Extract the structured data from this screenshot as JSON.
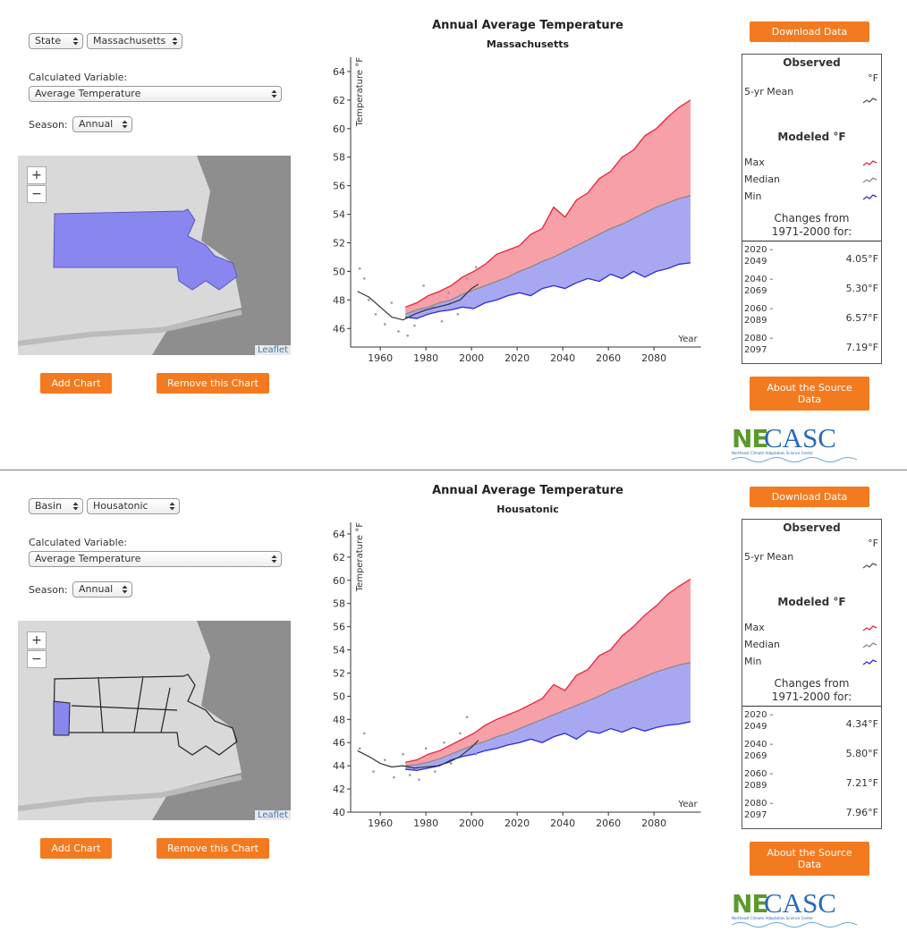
{
  "panels": [
    {
      "region_type": "State",
      "region": "Massachusetts",
      "variable_label": "Calculated Variable:",
      "variable": "Average Temperature",
      "season_label": "Season:",
      "season": "Annual",
      "zoom_in": "+",
      "zoom_out": "−",
      "map_attribution": "Leaflet",
      "add_button": "Add Chart",
      "remove_button": "Remove this Chart",
      "download_button": "Download Data",
      "chart": {
        "type": "line",
        "title": "Annual Average Temperature",
        "subtitle": "Massachusetts",
        "y_label": "Temperature °F",
        "x_label": "Year",
        "xlim": [
          1947,
          2099
        ],
        "xticks": [
          1960,
          1980,
          2000,
          2020,
          2040,
          2060,
          2080
        ],
        "ylim": [
          44.7,
          65
        ],
        "yticks": [
          46,
          48,
          50,
          52,
          54,
          56,
          58,
          60,
          62,
          64
        ],
        "x": [
          1971,
          1976,
          1981,
          1986,
          1991,
          1996,
          2001,
          2006,
          2011,
          2016,
          2021,
          2026,
          2031,
          2036,
          2041,
          2046,
          2051,
          2056,
          2061,
          2066,
          2071,
          2076,
          2081,
          2086,
          2091,
          2096
        ],
        "series": [
          {
            "name": "Max",
            "color": "#e8243c",
            "values": [
              47.5,
              47.8,
              48.3,
              48.6,
              49.0,
              49.6,
              50.0,
              50.5,
              51.2,
              51.5,
              51.8,
              52.6,
              53.0,
              54.5,
              53.8,
              55.0,
              55.5,
              56.5,
              57.0,
              58.0,
              58.5,
              59.5,
              60.0,
              60.8,
              61.5,
              62.0
            ]
          },
          {
            "name": "Median",
            "color": "#8a8a8a",
            "values": [
              47.0,
              47.3,
              47.5,
              47.8,
              48.0,
              48.4,
              48.7,
              49.0,
              49.3,
              49.6,
              50.0,
              50.3,
              50.7,
              51.0,
              51.4,
              51.8,
              52.2,
              52.6,
              53.0,
              53.3,
              53.7,
              54.1,
              54.5,
              54.8,
              55.1,
              55.3
            ]
          },
          {
            "name": "Min",
            "color": "#2b2be0",
            "values": [
              46.8,
              46.7,
              47.0,
              47.2,
              47.3,
              47.5,
              47.4,
              47.8,
              48.0,
              48.3,
              48.5,
              48.3,
              48.8,
              49.0,
              48.8,
              49.2,
              49.5,
              49.3,
              49.8,
              49.5,
              50.0,
              49.6,
              50.0,
              50.2,
              50.5,
              50.6
            ]
          }
        ],
        "observed_mean": {
          "name": "5-yr Mean",
          "color": "#333333",
          "x": [
            1950,
            1955,
            1960,
            1965,
            1970,
            1975,
            1980,
            1985,
            1990,
            1995,
            2000,
            2003
          ],
          "values": [
            48.6,
            48.2,
            47.5,
            46.8,
            46.6,
            47.0,
            47.3,
            47.5,
            47.7,
            48.0,
            48.8,
            49.1
          ]
        },
        "observed_points": {
          "color": "#999999",
          "x": [
            1951,
            1953,
            1955,
            1958,
            1962,
            1965,
            1968,
            1972,
            1975,
            1979,
            1983,
            1987,
            1990,
            1994,
            1998,
            2002
          ],
          "values": [
            50.2,
            49.5,
            48.0,
            47.0,
            46.3,
            47.8,
            45.8,
            45.5,
            46.2,
            49.0,
            47.5,
            46.5,
            48.5,
            47.0,
            49.5,
            50.3
          ]
        }
      },
      "legend": {
        "observed_title": "Observed",
        "observed_unit": "°F",
        "modeled_title": "Modeled °F",
        "changes_title": "Changes from 1971-2000 for:",
        "rows": [
          [
            "2020 - 2049",
            "4.05°F"
          ],
          [
            "2040 - 2069",
            "5.30°F"
          ],
          [
            "2060 - 2089",
            "6.57°F"
          ],
          [
            "2080 - 2097",
            "7.19°F"
          ]
        ]
      },
      "source_button": "About the Source Data",
      "logo_parts": [
        "NE",
        "CASC"
      ],
      "logo_subtitle": "Northeast Climate Adaptation Science Center"
    },
    {
      "region_type": "Basin",
      "region": "Housatonic",
      "variable_label": "Calculated Variable:",
      "variable": "Average Temperature",
      "season_label": "Season:",
      "season": "Annual",
      "zoom_in": "+",
      "zoom_out": "−",
      "map_attribution": "Leaflet",
      "add_button": "Add Chart",
      "remove_button": "Remove this Chart",
      "download_button": "Download Data",
      "chart": {
        "type": "line",
        "title": "Annual Average Temperature",
        "subtitle": "Housatonic",
        "y_label": "Temperature °F",
        "x_label": "Year",
        "xlim": [
          1947,
          2099
        ],
        "xticks": [
          1960,
          1980,
          2000,
          2020,
          2040,
          2060,
          2080
        ],
        "ylim": [
          40,
          65
        ],
        "yticks": [
          40,
          42,
          44,
          46,
          48,
          50,
          52,
          54,
          56,
          58,
          60,
          62,
          64
        ],
        "x": [
          1971,
          1976,
          1981,
          1986,
          1991,
          1996,
          2001,
          2006,
          2011,
          2016,
          2021,
          2026,
          2031,
          2036,
          2041,
          2046,
          2051,
          2056,
          2061,
          2066,
          2071,
          2076,
          2081,
          2086,
          2091,
          2096
        ],
        "series": [
          {
            "name": "Max",
            "color": "#e8243c",
            "values": [
              44.3,
              44.5,
              45.0,
              45.3,
              45.8,
              46.3,
              46.8,
              47.5,
              48.0,
              48.4,
              48.8,
              49.3,
              49.8,
              51.0,
              50.5,
              51.8,
              52.3,
              53.5,
              54.0,
              55.2,
              56.0,
              57.0,
              57.8,
              58.8,
              59.5,
              60.1
            ]
          },
          {
            "name": "Median",
            "color": "#8a8a8a",
            "values": [
              44.0,
              44.1,
              44.3,
              44.6,
              45.0,
              45.4,
              45.8,
              46.1,
              46.5,
              46.8,
              47.2,
              47.6,
              48.0,
              48.4,
              48.8,
              49.2,
              49.6,
              50.0,
              50.5,
              50.9,
              51.3,
              51.7,
              52.1,
              52.4,
              52.7,
              52.9
            ]
          },
          {
            "name": "Min",
            "color": "#2b2be0",
            "values": [
              43.7,
              43.6,
              43.8,
              44.0,
              44.5,
              44.8,
              45.0,
              45.3,
              45.5,
              45.8,
              46.0,
              46.3,
              46.0,
              46.5,
              46.8,
              46.3,
              47.0,
              46.8,
              47.2,
              46.9,
              47.3,
              47.0,
              47.3,
              47.5,
              47.6,
              47.8
            ]
          }
        ],
        "observed_mean": {
          "name": "5-yr Mean",
          "color": "#333333",
          "x": [
            1950,
            1955,
            1960,
            1965,
            1970,
            1975,
            1980,
            1985,
            1990,
            1995,
            2000,
            2003
          ],
          "values": [
            45.3,
            44.8,
            44.2,
            43.9,
            44.0,
            43.8,
            43.9,
            44.0,
            44.3,
            44.8,
            45.6,
            46.2
          ]
        },
        "observed_points": {
          "color": "#999999",
          "x": [
            1951,
            1953,
            1957,
            1962,
            1966,
            1970,
            1973,
            1977,
            1980,
            1984,
            1988,
            1991,
            1995,
            1998,
            2002
          ],
          "values": [
            45.5,
            46.8,
            43.5,
            44.5,
            43.0,
            45.0,
            43.2,
            42.8,
            45.5,
            43.5,
            46.0,
            44.2,
            46.8,
            48.2,
            45.0
          ]
        }
      },
      "legend": {
        "observed_title": "Observed",
        "observed_unit": "°F",
        "modeled_title": "Modeled °F",
        "changes_title": "Changes from 1971-2000 for:",
        "rows": [
          [
            "2020 - 2049",
            "4.34°F"
          ],
          [
            "2040 - 2069",
            "5.80°F"
          ],
          [
            "2060 - 2089",
            "7.21°F"
          ],
          [
            "2080 - 2097",
            "7.96°F"
          ]
        ]
      },
      "source_button": "About the Source Data",
      "logo_parts": [
        "NE",
        "CASC"
      ],
      "logo_subtitle": "Northeast Climate Adaptation Science Center"
    }
  ]
}
